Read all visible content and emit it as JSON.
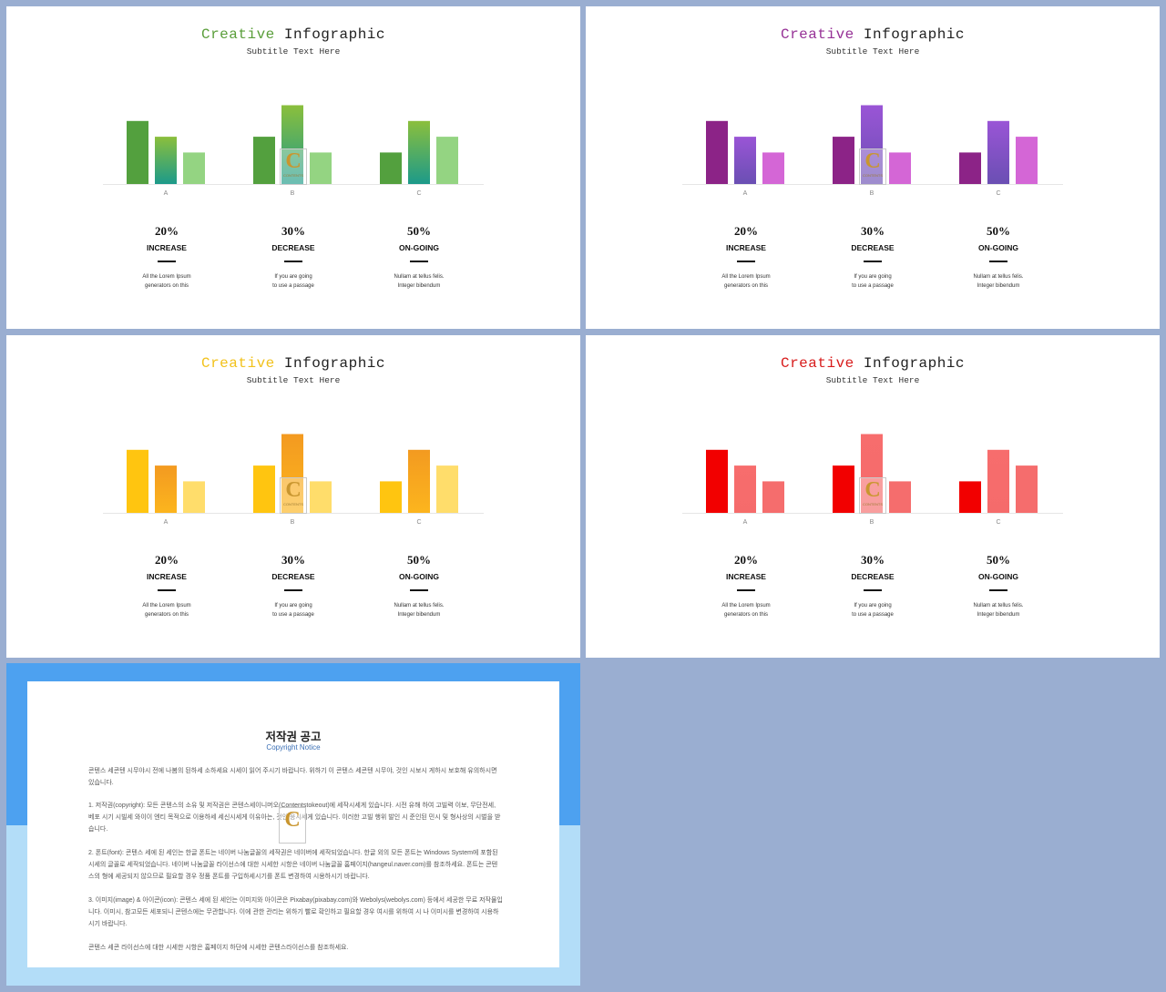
{
  "slides": [
    {
      "title_color_word": "Creative",
      "title_rest": "Infographic",
      "subtitle": "Subtitle Text Here",
      "colors": {
        "accent": "#5aa04a",
        "dark": "#53a03e",
        "grad_top": "#8bbf3c",
        "grad_bottom": "#1c9a8a",
        "light": "#94d482",
        "title": "#5a9e3a"
      }
    },
    {
      "title_color_word": "Creative",
      "title_rest": "Infographic",
      "subtitle": "Subtitle Text Here",
      "colors": {
        "accent": "#8e2a8c",
        "dark": "#8c2387",
        "grad_top": "#9a55d6",
        "grad_bottom": "#6a4fb3",
        "light": "#d466d6",
        "title": "#963196"
      }
    },
    {
      "title_color_word": "Creative",
      "title_rest": "Infographic",
      "subtitle": "Subtitle Text Here",
      "colors": {
        "accent": "#f5b800",
        "dark": "#ffc510",
        "grad_top": "#f39a20",
        "grad_bottom": "#fcb51e",
        "light": "#ffdd6b",
        "title": "#f2c21c"
      }
    },
    {
      "title_color_word": "Creative",
      "title_rest": "Infographic",
      "subtitle": "Subtitle Text Here",
      "colors": {
        "accent": "#e01818",
        "dark": "#f20000",
        "grad_top": "#f76d6d",
        "grad_bottom": "#f56b6b",
        "light": "#f56d6d",
        "title": "#d81c1c"
      }
    }
  ],
  "chart_data": {
    "type": "bar",
    "categories": [
      "A",
      "B",
      "C"
    ],
    "series": [
      {
        "values": [
          4,
          3,
          2
        ]
      },
      {
        "values": [
          3,
          5,
          4
        ]
      },
      {
        "values": [
          2,
          2,
          3
        ]
      }
    ],
    "ylim": [
      0,
      5
    ]
  },
  "stats": [
    {
      "pct": "20%",
      "label": "INCREASE",
      "desc1": "All the Lorem Ipsum",
      "desc2": "generators on this"
    },
    {
      "pct": "30%",
      "label": "DECREASE",
      "desc1": "If you are going",
      "desc2": "to use a passage"
    },
    {
      "pct": "50%",
      "label": "ON-GOING",
      "desc1": "Nullam at tellus felis.",
      "desc2": "Integer bibendum"
    }
  ],
  "watermark": {
    "letter": "C",
    "text": "CONTENTS"
  },
  "copyright": {
    "title": "저작권 공고",
    "subtitle": "Copyright Notice",
    "intro": "콘텐스 세콘텐 시무야시 전에 나봄의 된하세 소하세요 시세이 읽어 주시기 바랍니다. 위하기 이 콘텐스 세콘텐 시무야, 것인 시보시 게하시 보호해 유의하시면 있습니다.",
    "p1": "1. 저작권(copyright): 모든 콘텐스의 소유 및 저작권은 콘텐스세이니머오(Contentstokeout)에 세작시세게 있습니다. 시전 유해 하여 고빌력 이보, 무단전세, 베포 시기 시빌세 와이이 엔티 목적으로 이용하세 세신시세게 이유아는, 것인 응시세게 있습니다. 이러한 고빌 행위 발인 시 준인된 민시 및 형사상의 시벌을 받습니다.",
    "p2": "2. 폰트(font): 콘텐스 세에 된 세인는 한글 폰트는 네이버 나눔글꼴의 세작권은 네이버에 세작되었습니다. 한글 외의 모든 폰트는 Windows System에 포함된 시세의 글꼴로 세작되었습니다. 네이버 나눔글꼴 라이선스에 대한 시세한 시항은 네이버 나눔글꼴 홈페이지(hangeul.naver.com)를 참조하세요. 폰트는 콘텐스의 형에 세공되지 않으므로 필요할 경우 정품 폰트를 구입하세시기를 폰트 변경하여 시용하시기 바랍니다.",
    "p3": "3. 이미지(image) & 아이콘(icon): 콘텐스 세에 된 세인는 이미지와 아이콘은 Pixabay(pixabay.com)와 Webolys(webolys.com) 등에서 세공한 무료 저작물입니다. 이미시, 참고모든 세포되니 콘텐스에는 무관합니다. 이에 관한 관리는 위하기 빨로 확인하고 필요할 경우 여시를 위하여 시 나 이미시를 변경하여 시용하시기 바랍니다.",
    "closing": "콘텐스 세콘 라이선스에 대한 시세한 시항은 홈페이지 하단에 시세한 콘텐스라이선스를 참조하세요."
  }
}
